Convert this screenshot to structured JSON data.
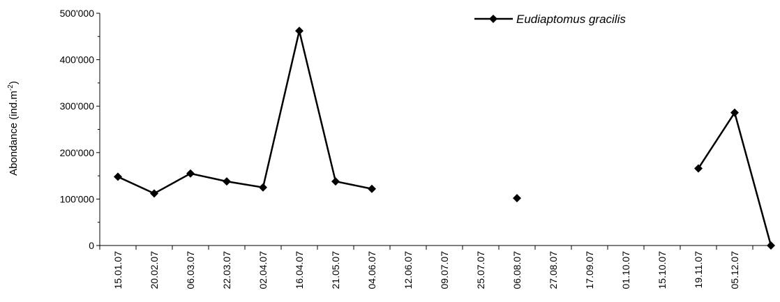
{
  "chart_data": {
    "type": "line",
    "title": "",
    "xlabel": "",
    "ylabel": "Abondance  (ind.m",
    "ylabel_sup": "-2",
    "ylabel_close": ")",
    "ylim": [
      0,
      500000
    ],
    "yticks": [
      0,
      100000,
      200000,
      300000,
      400000,
      500000
    ],
    "ytick_labels": [
      "0",
      "100'000",
      "200'000",
      "300'000",
      "400'000",
      "500'000"
    ],
    "categories": [
      "15.01.07",
      "20.02.07",
      "06.03.07",
      "22.03.07",
      "02.04.07",
      "16.04.07",
      "21.05.07",
      "04.06.07",
      "12.06.07",
      "09.07.07",
      "25.07.07",
      "06.08.07",
      "27.08.07",
      "17.09.07",
      "01.10.07",
      "15.10.07",
      "19.11.07",
      "05.12.07",
      ""
    ],
    "legend_position": "top-right",
    "grid": false,
    "series": [
      {
        "name": "Eudiaptomus gracilis",
        "marker": "diamond",
        "color": "#000000",
        "values": [
          148000,
          112000,
          155000,
          138000,
          125000,
          462000,
          138000,
          122000,
          null,
          null,
          null,
          102000,
          null,
          null,
          null,
          null,
          166000,
          286000,
          0
        ]
      }
    ]
  }
}
